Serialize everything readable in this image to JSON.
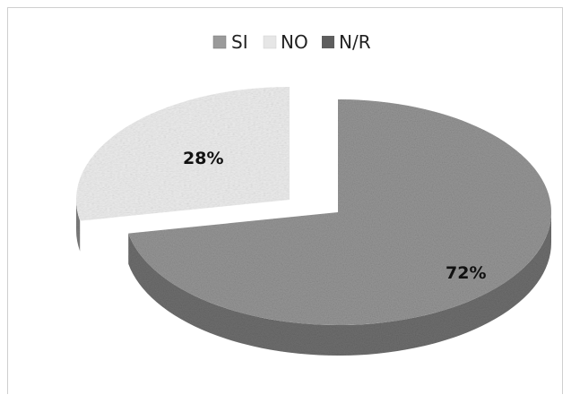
{
  "chart_data": {
    "type": "pie",
    "title": "",
    "categories": [
      "SI",
      "NO",
      "N/R"
    ],
    "values": [
      72,
      28,
      0
    ],
    "data_labels": [
      "72%",
      "28%",
      ""
    ],
    "legend_position": "top",
    "three_d": true,
    "exploded_slice": "NO",
    "colors": {
      "SI": "#8f8f8f",
      "NO": "#e4e4e4",
      "N/R": "#5e5e5e"
    }
  }
}
